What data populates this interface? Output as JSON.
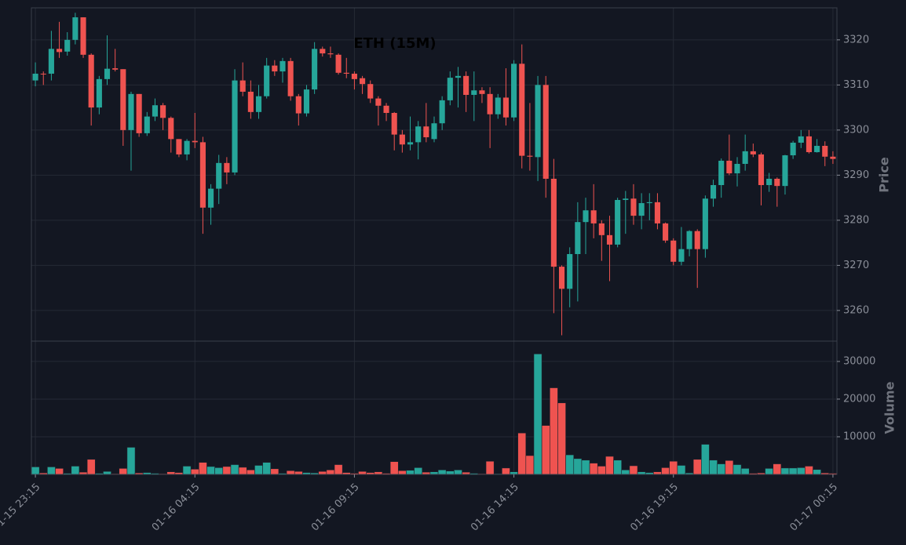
{
  "chart_data": {
    "type": "candlestick",
    "title": "ETH (15M)",
    "ylabel": "Price",
    "categories": [
      "01-15 23:15",
      null,
      null,
      null,
      null,
      null,
      null,
      null,
      null,
      null,
      null,
      null,
      null,
      null,
      null,
      null,
      null,
      null,
      null,
      null,
      "01-16 04:15",
      null,
      null,
      null,
      null,
      null,
      null,
      null,
      null,
      null,
      null,
      null,
      null,
      null,
      null,
      null,
      null,
      null,
      null,
      null,
      "01-16 09:15",
      null,
      null,
      null,
      null,
      null,
      null,
      null,
      null,
      null,
      null,
      null,
      null,
      null,
      null,
      null,
      null,
      null,
      null,
      null,
      "01-16 14:15",
      null,
      null,
      null,
      null,
      null,
      null,
      null,
      null,
      null,
      null,
      null,
      null,
      null,
      null,
      null,
      null,
      null,
      null,
      null,
      "01-16 19:15",
      null,
      null,
      null,
      null,
      null,
      null,
      null,
      null,
      null,
      null,
      null,
      null,
      null,
      null,
      null,
      null,
      null,
      null,
      null,
      "01-17 00:15"
    ],
    "open": [
      3311,
      3312.5,
      3312.5,
      3318,
      3317.4,
      3320,
      3325,
      3316.7,
      3305,
      3311.3,
      3313.7,
      3313.5,
      3300,
      3308,
      3299.3,
      3303,
      3305.5,
      3302.7,
      3298,
      3294.6,
      3297.6,
      3297.3,
      3282.8,
      3287,
      3292.7,
      3290.6,
      3311,
      3308.5,
      3304,
      3307.5,
      3314.3,
      3313,
      3315.3,
      3307.5,
      3303.7,
      3309,
      3318,
      3317,
      3316.7,
      3312.7,
      3312.5,
      3311.5,
      3310.2,
      3307,
      3305.4,
      3303.8,
      3299,
      3296.8,
      3297.3,
      3300.8,
      3298,
      3301.5,
      3306.6,
      3311.6,
      3312,
      3307.8,
      3308.8,
      3308,
      3303.5,
      3307.2,
      3302.8,
      3314.7,
      3294.3,
      3294,
      3310,
      3289.2,
      3269.7,
      3264.8,
      3272.5,
      3279.6,
      3282.2,
      3279.3,
      3276.7,
      3274.6,
      3284.5,
      3284.8,
      3281,
      3283.8,
      3284,
      3279.3,
      3275.5,
      3270.8,
      3273.6,
      3277.6,
      3273.6,
      3284.8,
      3287.8,
      3293.2,
      3290.4,
      3292.5,
      3295.3,
      3294.6,
      3287.8,
      3289.2,
      3287.6,
      3294.4,
      3297.2,
      3298.6,
      3295.1,
      3296.5,
      3294.1
    ],
    "close": [
      3312.5,
      3312.4,
      3318,
      3317.3,
      3320,
      3325,
      3316.7,
      3305,
      3311.3,
      3313.6,
      3313.4,
      3300,
      3308,
      3299.3,
      3303,
      3305.5,
      3302.7,
      3298,
      3294.6,
      3297.6,
      3297.3,
      3282.8,
      3287,
      3292.7,
      3290.6,
      3311,
      3308.5,
      3304,
      3307.5,
      3314.3,
      3313,
      3315.3,
      3307.5,
      3303.7,
      3309,
      3318,
      3317,
      3316.8,
      3312.7,
      3312.5,
      3311.3,
      3310.2,
      3307,
      3305.4,
      3303.8,
      3299,
      3296.8,
      3297.3,
      3300.8,
      3298.4,
      3301.5,
      3306.6,
      3311.6,
      3312,
      3307.8,
      3308.8,
      3308,
      3303.5,
      3307.2,
      3302.8,
      3314.7,
      3294.3,
      3294.1,
      3310,
      3289.2,
      3269.7,
      3264.8,
      3272.5,
      3279.6,
      3282.2,
      3279.3,
      3276.7,
      3274.6,
      3284.5,
      3284.8,
      3281,
      3283.8,
      3284,
      3279.3,
      3275.5,
      3270.8,
      3273.6,
      3277.6,
      3273.6,
      3284.8,
      3287.8,
      3293.2,
      3290.4,
      3292.5,
      3295.3,
      3294.6,
      3287.8,
      3289.2,
      3287.6,
      3294.4,
      3297.2,
      3298.6,
      3295.1,
      3296.5,
      3294.1,
      3293.6
    ],
    "high": [
      3315,
      3313,
      3322,
      3324,
      3321.7,
      3326,
      3325,
      3317,
      3312,
      3321,
      3318,
      3313.5,
      3308.5,
      3308,
      3304,
      3307,
      3306,
      3303,
      3298,
      3298,
      3303.8,
      3298.5,
      3288,
      3294.5,
      3294,
      3313.5,
      3315,
      3311,
      3310,
      3316,
      3315.5,
      3316,
      3316,
      3308,
      3310,
      3319.5,
      3318.5,
      3318.5,
      3317,
      3316,
      3313,
      3312,
      3311,
      3307.5,
      3306,
      3304,
      3300,
      3303,
      3302,
      3306,
      3303,
      3307.5,
      3313,
      3314,
      3313,
      3313,
      3309.5,
      3309.5,
      3308,
      3313.7,
      3315.5,
      3319,
      3306,
      3312,
      3312,
      3293.6,
      3270,
      3274,
      3284,
      3285,
      3288,
      3280,
      3281,
      3285,
      3286.5,
      3288,
      3286,
      3286,
      3286,
      3279.5,
      3276,
      3278.5,
      3277.8,
      3278,
      3285.5,
      3289,
      3293.7,
      3299,
      3294,
      3299,
      3297,
      3295,
      3290.5,
      3289.5,
      3294.5,
      3297.6,
      3300,
      3300,
      3298,
      3297.5,
      3295.3
    ],
    "low": [
      3309.7,
      3310,
      3311,
      3316,
      3316.5,
      3319,
      3316,
      3301,
      3303.5,
      3310,
      3313,
      3296.5,
      3291,
      3298.5,
      3298.7,
      3302,
      3300,
      3295,
      3294,
      3293.3,
      3296,
      3277,
      3279,
      3283.6,
      3288,
      3290,
      3307.5,
      3302.5,
      3302.5,
      3307,
      3312,
      3310.5,
      3306.5,
      3301,
      3303,
      3308,
      3316.3,
      3316,
      3312.3,
      3311.5,
      3309,
      3308,
      3306,
      3301,
      3302,
      3295.5,
      3295,
      3295.5,
      3293.5,
      3297.3,
      3297.3,
      3300,
      3305.5,
      3305,
      3304,
      3302,
      3306,
      3296,
      3302.5,
      3301,
      3302,
      3291.5,
      3291,
      3288.7,
      3285,
      3259.4,
      3254.5,
      3260.7,
      3262,
      3272.5,
      3276,
      3271,
      3266.5,
      3274,
      3277,
      3279,
      3278,
      3280,
      3278,
      3275,
      3270,
      3270,
      3272,
      3265,
      3271.7,
      3283,
      3285,
      3290,
      3287.5,
      3291,
      3294,
      3283.3,
      3286.3,
      3283,
      3285.7,
      3293.6,
      3296,
      3294.8,
      3295,
      3292,
      3292.5
    ],
    "ylim": [
      3253.2,
      3327.1
    ],
    "yticks": [
      3260,
      3270,
      3280,
      3290,
      3300,
      3310,
      3320
    ],
    "colors": {
      "up": "#26a69a",
      "down": "#ef5350"
    },
    "grid": true,
    "volume": {
      "ylabel": "Volume",
      "values": [
        2000,
        400,
        2000,
        1600,
        300,
        2200,
        600,
        4000,
        300,
        800,
        200,
        1600,
        7200,
        400,
        500,
        300,
        200,
        700,
        500,
        2200,
        1400,
        3200,
        2100,
        1800,
        2100,
        2600,
        1900,
        1200,
        2400,
        3200,
        1500,
        300,
        1000,
        800,
        500,
        400,
        800,
        1200,
        2600,
        500,
        300,
        800,
        500,
        700,
        300,
        3400,
        1000,
        1100,
        1800,
        600,
        700,
        1200,
        900,
        1200,
        600,
        300,
        200,
        3500,
        200,
        1700,
        700,
        11000,
        5000,
        32000,
        13000,
        23000,
        19000,
        5200,
        4200,
        3800,
        3000,
        2200,
        4800,
        3800,
        1200,
        2300,
        700,
        500,
        700,
        1800,
        3500,
        2400,
        400,
        4000,
        8000,
        3800,
        2800,
        3700,
        2600,
        1600,
        300,
        400,
        1600,
        2800,
        1700,
        1700,
        1800,
        2200,
        1300,
        400,
        300
      ],
      "ylim": [
        0,
        35400
      ],
      "yticks": [
        10000,
        20000,
        30000
      ]
    }
  }
}
